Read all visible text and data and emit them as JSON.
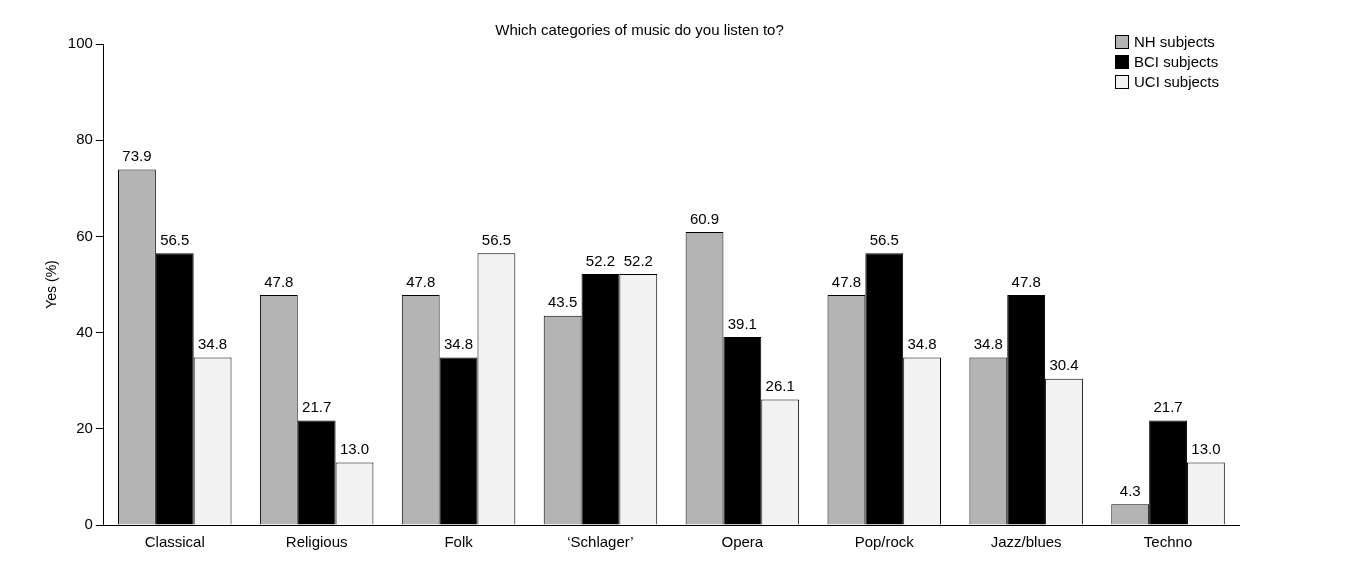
{
  "chart_data": {
    "type": "bar",
    "title": "Which categories of music do you listen to?",
    "ylabel": "Yes (%)",
    "categories": [
      "Classical",
      "Religious",
      "Folk",
      "‘Schlager’",
      "Opera",
      "Pop/rock",
      "Jazz/blues",
      "Techno"
    ],
    "series": [
      {
        "name": "NH subjects",
        "color": "#b4b4b4",
        "values": [
          73.9,
          47.8,
          47.8,
          43.5,
          60.9,
          47.8,
          34.8,
          4.3
        ]
      },
      {
        "name": "BCI subjects",
        "color": "#000000",
        "values": [
          56.5,
          21.7,
          34.8,
          52.2,
          39.1,
          56.5,
          47.8,
          21.7
        ]
      },
      {
        "name": "UCI subjects",
        "color": "#f2f2f2",
        "values": [
          34.8,
          13.0,
          56.5,
          52.2,
          26.1,
          34.8,
          30.4,
          13.0
        ]
      }
    ],
    "value_labels": [
      [
        "73.9",
        "47.8",
        "47.8",
        "43.5",
        "60.9",
        "47.8",
        "34.8",
        "4.3"
      ],
      [
        "56.5",
        "21.7",
        "34.8",
        "52.2",
        "39.1",
        "56.5",
        "47.8",
        "21.7"
      ],
      [
        "34.8",
        "13.0",
        "56.5",
        "52.2",
        "26.1",
        "34.8",
        "30.4",
        "13.0"
      ]
    ],
    "ylim": [
      0,
      100
    ],
    "yticks": [
      0,
      20,
      40,
      60,
      80,
      100
    ],
    "grid": false,
    "legend": "top right"
  }
}
